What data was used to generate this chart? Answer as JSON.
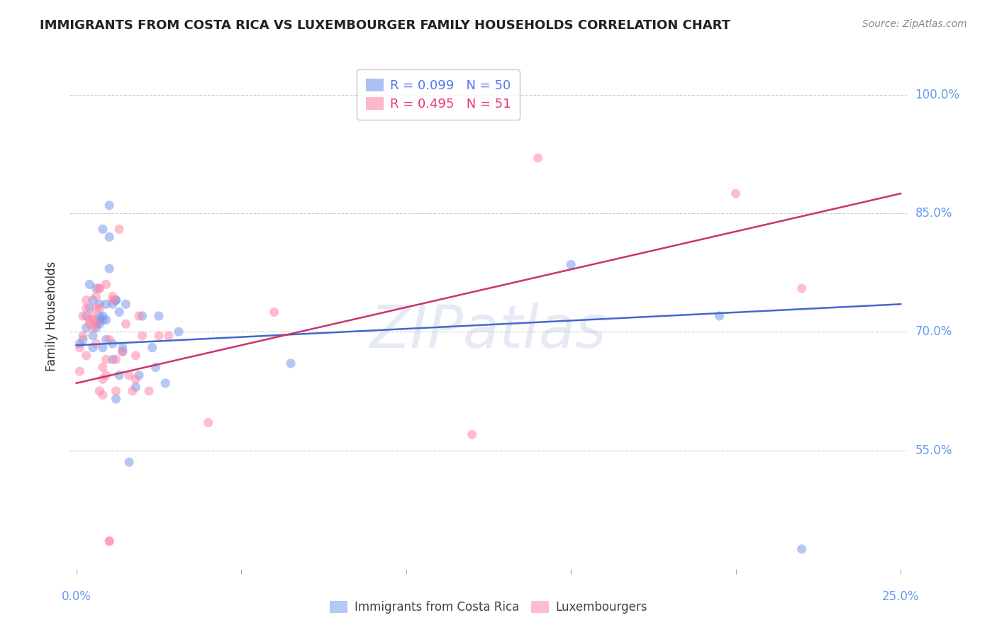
{
  "title": "IMMIGRANTS FROM COSTA RICA VS LUXEMBOURGER FAMILY HOUSEHOLDS CORRELATION CHART",
  "source": "Source: ZipAtlas.com",
  "ylabel": "Family Households",
  "legend1_label": "R = 0.099   N = 50",
  "legend2_label": "R = 0.495   N = 51",
  "blue_color": "#7799ee",
  "pink_color": "#ff88aa",
  "blue_scatter": [
    [
      0.001,
      0.685
    ],
    [
      0.002,
      0.69
    ],
    [
      0.003,
      0.72
    ],
    [
      0.003,
      0.705
    ],
    [
      0.004,
      0.76
    ],
    [
      0.004,
      0.73
    ],
    [
      0.005,
      0.695
    ],
    [
      0.005,
      0.68
    ],
    [
      0.005,
      0.74
    ],
    [
      0.006,
      0.755
    ],
    [
      0.006,
      0.705
    ],
    [
      0.006,
      0.71
    ],
    [
      0.007,
      0.735
    ],
    [
      0.007,
      0.715
    ],
    [
      0.007,
      0.72
    ],
    [
      0.007,
      0.71
    ],
    [
      0.008,
      0.72
    ],
    [
      0.008,
      0.715
    ],
    [
      0.008,
      0.68
    ],
    [
      0.008,
      0.83
    ],
    [
      0.009,
      0.715
    ],
    [
      0.009,
      0.735
    ],
    [
      0.009,
      0.69
    ],
    [
      0.01,
      0.86
    ],
    [
      0.01,
      0.82
    ],
    [
      0.01,
      0.78
    ],
    [
      0.011,
      0.735
    ],
    [
      0.011,
      0.665
    ],
    [
      0.011,
      0.685
    ],
    [
      0.012,
      0.74
    ],
    [
      0.012,
      0.74
    ],
    [
      0.012,
      0.615
    ],
    [
      0.013,
      0.645
    ],
    [
      0.013,
      0.725
    ],
    [
      0.014,
      0.675
    ],
    [
      0.014,
      0.68
    ],
    [
      0.015,
      0.735
    ],
    [
      0.016,
      0.535
    ],
    [
      0.018,
      0.63
    ],
    [
      0.019,
      0.645
    ],
    [
      0.02,
      0.72
    ],
    [
      0.023,
      0.68
    ],
    [
      0.024,
      0.655
    ],
    [
      0.025,
      0.72
    ],
    [
      0.027,
      0.635
    ],
    [
      0.031,
      0.7
    ],
    [
      0.065,
      0.66
    ],
    [
      0.15,
      0.785
    ],
    [
      0.195,
      0.72
    ],
    [
      0.22,
      0.425
    ]
  ],
  "pink_scatter": [
    [
      0.001,
      0.65
    ],
    [
      0.001,
      0.68
    ],
    [
      0.002,
      0.695
    ],
    [
      0.002,
      0.72
    ],
    [
      0.003,
      0.67
    ],
    [
      0.003,
      0.74
    ],
    [
      0.003,
      0.73
    ],
    [
      0.004,
      0.71
    ],
    [
      0.004,
      0.715
    ],
    [
      0.005,
      0.705
    ],
    [
      0.005,
      0.715
    ],
    [
      0.005,
      0.72
    ],
    [
      0.006,
      0.73
    ],
    [
      0.006,
      0.685
    ],
    [
      0.006,
      0.745
    ],
    [
      0.006,
      0.71
    ],
    [
      0.007,
      0.755
    ],
    [
      0.007,
      0.755
    ],
    [
      0.007,
      0.73
    ],
    [
      0.007,
      0.625
    ],
    [
      0.008,
      0.64
    ],
    [
      0.008,
      0.655
    ],
    [
      0.008,
      0.62
    ],
    [
      0.009,
      0.76
    ],
    [
      0.009,
      0.665
    ],
    [
      0.009,
      0.645
    ],
    [
      0.01,
      0.435
    ],
    [
      0.01,
      0.435
    ],
    [
      0.01,
      0.69
    ],
    [
      0.011,
      0.74
    ],
    [
      0.011,
      0.745
    ],
    [
      0.012,
      0.665
    ],
    [
      0.012,
      0.625
    ],
    [
      0.013,
      0.83
    ],
    [
      0.014,
      0.675
    ],
    [
      0.015,
      0.71
    ],
    [
      0.016,
      0.645
    ],
    [
      0.017,
      0.625
    ],
    [
      0.018,
      0.64
    ],
    [
      0.018,
      0.67
    ],
    [
      0.019,
      0.72
    ],
    [
      0.02,
      0.695
    ],
    [
      0.022,
      0.625
    ],
    [
      0.025,
      0.695
    ],
    [
      0.028,
      0.695
    ],
    [
      0.04,
      0.585
    ],
    [
      0.06,
      0.725
    ],
    [
      0.12,
      0.57
    ],
    [
      0.14,
      0.92
    ],
    [
      0.2,
      0.875
    ],
    [
      0.22,
      0.755
    ]
  ],
  "blue_line_x": [
    0.0,
    0.25
  ],
  "blue_line_y": [
    0.683,
    0.735
  ],
  "pink_line_x": [
    0.0,
    0.25
  ],
  "pink_line_y": [
    0.635,
    0.875
  ],
  "xmin": -0.002,
  "xmax": 0.252,
  "ymin": 0.4,
  "ymax": 1.04,
  "ytick_vals": [
    0.55,
    0.7,
    0.85,
    1.0
  ],
  "ytick_labels": [
    "55.0%",
    "70.0%",
    "85.0%",
    "100.0%"
  ],
  "xtick_positions": [
    0.0,
    0.05,
    0.1,
    0.15,
    0.2,
    0.25
  ],
  "background_color": "#ffffff",
  "grid_color": "#cccccc",
  "title_fontsize": 13,
  "axis_label_fontsize": 12,
  "tick_fontsize": 12,
  "scatter_size": 90,
  "scatter_alpha": 0.55,
  "line_width": 1.8,
  "blue_line_color": "#4466cc",
  "pink_line_color": "#cc3366",
  "right_tick_color": "#6699ee",
  "watermark_text": "ZIPatlas",
  "watermark_color": "#aabbdd",
  "watermark_alpha": 0.3,
  "watermark_fontsize": 60
}
